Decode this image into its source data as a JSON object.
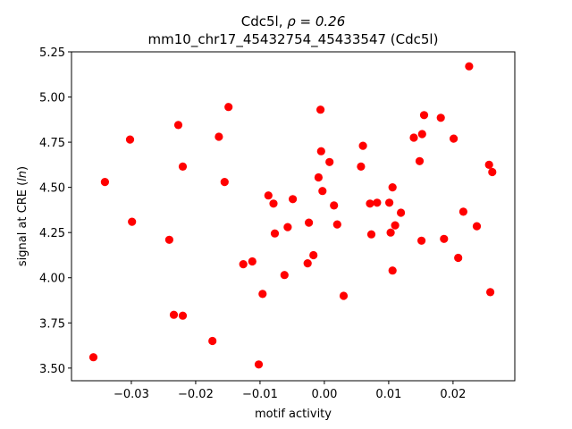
{
  "chart_data": {
    "type": "scatter",
    "title_line1_prefix": "Cdc5l, ",
    "title_line1_rho": "ρ = 0.26",
    "title_line2": "mm10_chr17_45432754_45433547 (Cdc5l)",
    "xlabel": "motif activity",
    "ylabel_prefix": "signal at CRE (",
    "ylabel_italic": "ln",
    "ylabel_suffix": ")",
    "xlim": [
      -0.0393,
      0.0296
    ],
    "ylim": [
      3.43,
      5.25
    ],
    "xticks": [
      -0.03,
      -0.02,
      -0.01,
      0.0,
      0.01,
      0.02
    ],
    "xtick_labels": [
      "−0.03",
      "−0.02",
      "−0.01",
      "0.00",
      "0.01",
      "0.02"
    ],
    "yticks": [
      3.5,
      3.75,
      4.0,
      4.25,
      4.5,
      4.75,
      5.0,
      5.25
    ],
    "ytick_labels": [
      "3.50",
      "3.75",
      "4.00",
      "4.25",
      "4.50",
      "4.75",
      "5.00",
      "5.25"
    ],
    "marker_color": "#ff0000",
    "points": [
      {
        "x": -0.0359,
        "y": 3.56
      },
      {
        "x": -0.0341,
        "y": 4.53
      },
      {
        "x": -0.0302,
        "y": 4.765
      },
      {
        "x": -0.0299,
        "y": 4.31
      },
      {
        "x": -0.0241,
        "y": 4.21
      },
      {
        "x": -0.0234,
        "y": 3.795
      },
      {
        "x": -0.0227,
        "y": 4.845
      },
      {
        "x": -0.022,
        "y": 4.615
      },
      {
        "x": -0.022,
        "y": 3.79
      },
      {
        "x": -0.0174,
        "y": 3.65
      },
      {
        "x": -0.0164,
        "y": 4.78
      },
      {
        "x": -0.0155,
        "y": 4.53
      },
      {
        "x": -0.0149,
        "y": 4.945
      },
      {
        "x": -0.0126,
        "y": 4.075
      },
      {
        "x": -0.0112,
        "y": 4.09
      },
      {
        "x": -0.0102,
        "y": 3.52
      },
      {
        "x": -0.0096,
        "y": 3.91
      },
      {
        "x": -0.0087,
        "y": 4.455
      },
      {
        "x": -0.0079,
        "y": 4.41
      },
      {
        "x": -0.0077,
        "y": 4.245
      },
      {
        "x": -0.0062,
        "y": 4.015
      },
      {
        "x": -0.0057,
        "y": 4.28
      },
      {
        "x": -0.0049,
        "y": 4.435
      },
      {
        "x": -0.0026,
        "y": 4.08
      },
      {
        "x": -0.0024,
        "y": 4.305
      },
      {
        "x": -0.0017,
        "y": 4.125
      },
      {
        "x": -0.0009,
        "y": 4.555
      },
      {
        "x": -0.0006,
        "y": 4.93
      },
      {
        "x": -0.0005,
        "y": 4.7
      },
      {
        "x": -0.0003,
        "y": 4.48
      },
      {
        "x": 0.0008,
        "y": 4.64
      },
      {
        "x": 0.0015,
        "y": 4.4
      },
      {
        "x": 0.002,
        "y": 4.295
      },
      {
        "x": 0.003,
        "y": 3.9
      },
      {
        "x": 0.0057,
        "y": 4.615
      },
      {
        "x": 0.006,
        "y": 4.73
      },
      {
        "x": 0.0071,
        "y": 4.41
      },
      {
        "x": 0.0073,
        "y": 4.24
      },
      {
        "x": 0.0082,
        "y": 4.415
      },
      {
        "x": 0.0101,
        "y": 4.415
      },
      {
        "x": 0.0103,
        "y": 4.25
      },
      {
        "x": 0.0106,
        "y": 4.04
      },
      {
        "x": 0.0106,
        "y": 4.5
      },
      {
        "x": 0.011,
        "y": 4.29
      },
      {
        "x": 0.0119,
        "y": 4.36
      },
      {
        "x": 0.0139,
        "y": 4.775
      },
      {
        "x": 0.0148,
        "y": 4.645
      },
      {
        "x": 0.0151,
        "y": 4.205
      },
      {
        "x": 0.0152,
        "y": 4.795
      },
      {
        "x": 0.0155,
        "y": 4.9
      },
      {
        "x": 0.0181,
        "y": 4.885
      },
      {
        "x": 0.0186,
        "y": 4.215
      },
      {
        "x": 0.0201,
        "y": 4.77
      },
      {
        "x": 0.0208,
        "y": 4.11
      },
      {
        "x": 0.0216,
        "y": 4.365
      },
      {
        "x": 0.0225,
        "y": 5.17
      },
      {
        "x": 0.0237,
        "y": 4.285
      },
      {
        "x": 0.0256,
        "y": 4.625
      },
      {
        "x": 0.0258,
        "y": 3.92
      },
      {
        "x": 0.0261,
        "y": 4.585
      }
    ]
  }
}
